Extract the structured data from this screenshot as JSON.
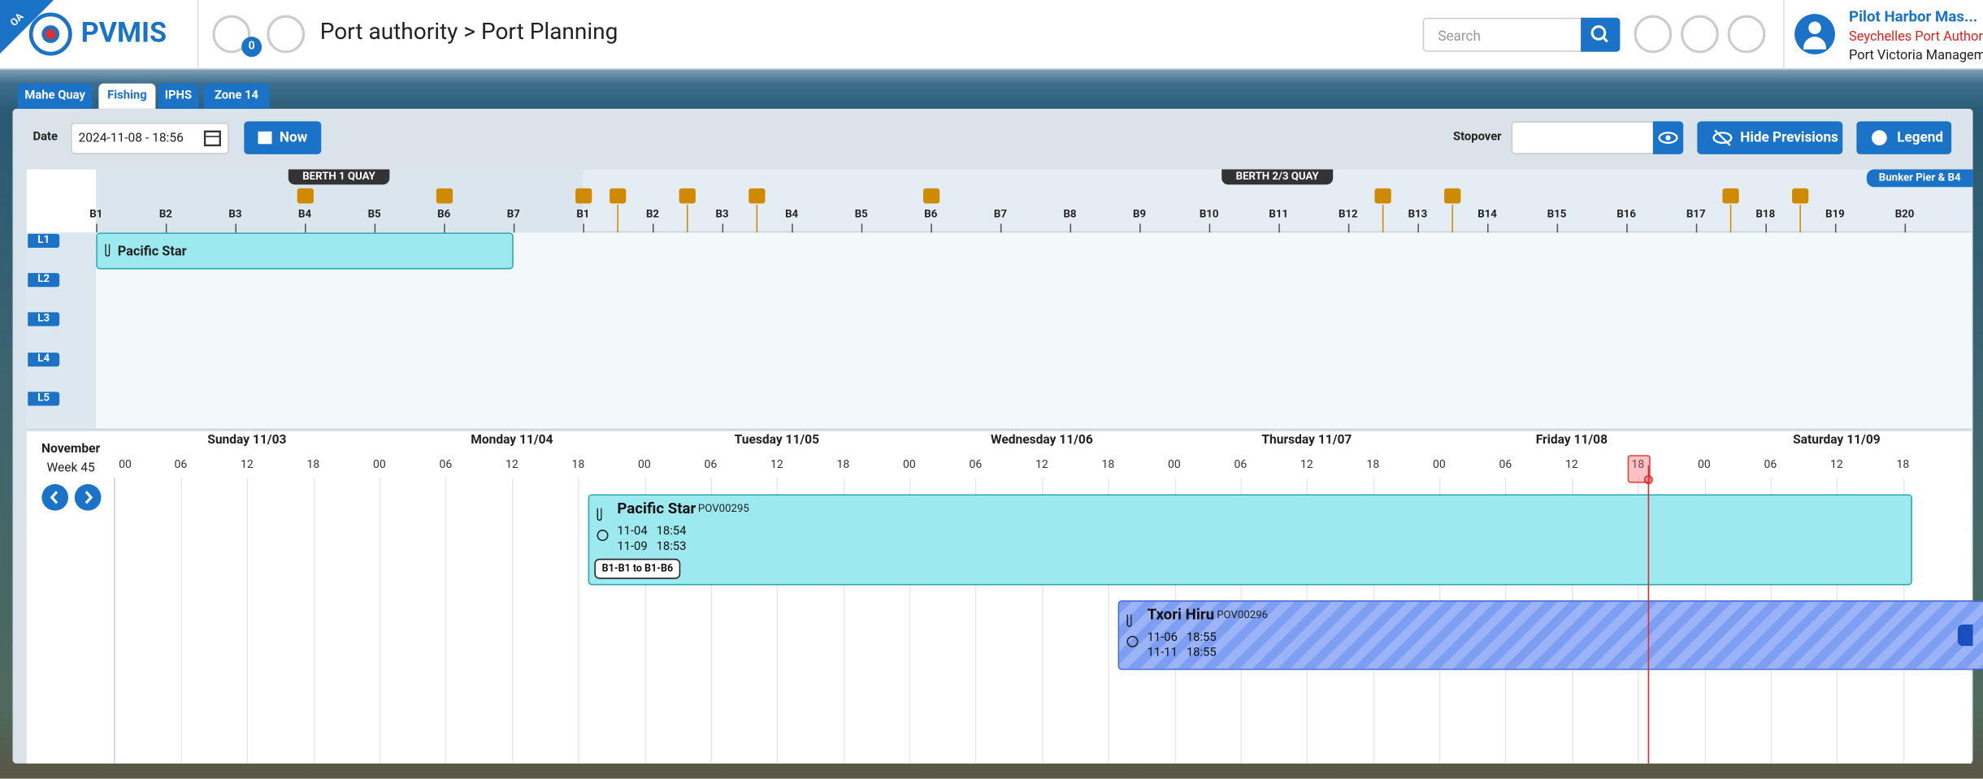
{
  "header": {
    "badge": "OA",
    "logo": "PVMIS",
    "notification_count": "0",
    "breadcrumb": "Port authority > Port Planning",
    "search_placeholder": "Search",
    "user": {
      "name": "Pilot Harbor Mas...",
      "organization": "Seychelles Port Author",
      "office": "Port Victoria Managem"
    }
  },
  "tabs": [
    "Mahe Quay",
    "Fishing",
    "IPHS",
    "Zone 14"
  ],
  "active_tab": "Fishing",
  "toolbar": {
    "date_label": "Date",
    "date_value": "2024-11-08 - 18:56",
    "now_button": "Now",
    "stopover_label": "Stopover",
    "hide_previsions_button": "Hide Previsions",
    "legend_button": "Legend"
  },
  "berth_plan": {
    "quays": [
      {
        "name": "BERTH 1 QUAY",
        "berths": [
          "B1",
          "B2",
          "B3",
          "B4",
          "B5",
          "B6",
          "B7"
        ]
      },
      {
        "name": "BERTH 2/3 QUAY",
        "berths": [
          "B1",
          "B2",
          "B3",
          "B4",
          "B5",
          "B6",
          "B7",
          "B8",
          "B9",
          "B10",
          "B11",
          "B12",
          "B13",
          "B14",
          "B15",
          "B16",
          "B17",
          "B18",
          "B19",
          "B20"
        ]
      }
    ],
    "bunker_link": "Bunker Pier & B4",
    "lanes": [
      "L1",
      "L2",
      "L3",
      "L4",
      "L5"
    ],
    "lane_vessel": "Pacific Star"
  },
  "timeline": {
    "month": "November",
    "week": "Week 45",
    "days": [
      "Sunday 11/03",
      "Monday 11/04",
      "Tuesday 11/05",
      "Wednesday 11/06",
      "Thursday 11/07",
      "Friday 11/08",
      "Saturday 11/09"
    ],
    "hours": [
      "00",
      "06",
      "12",
      "18",
      "00",
      "06",
      "12",
      "18",
      "00",
      "06",
      "12",
      "18",
      "00",
      "06",
      "12",
      "18",
      "00",
      "06",
      "12",
      "18",
      "00",
      "06",
      "12",
      "18",
      "00",
      "06",
      "12",
      "18"
    ],
    "bookings": [
      {
        "vessel": "Pacific Star",
        "code": "POV00295",
        "start_date": "11-04",
        "start_time": "18:54",
        "end_date": "11-09",
        "end_time": "18:53",
        "berths": "B1-B1 to B1-B6"
      },
      {
        "vessel": "Txori Hiru",
        "code": "POV00296",
        "start_date": "11-06",
        "start_time": "18:55",
        "end_date": "11-11",
        "end_time": "18:55"
      }
    ]
  }
}
